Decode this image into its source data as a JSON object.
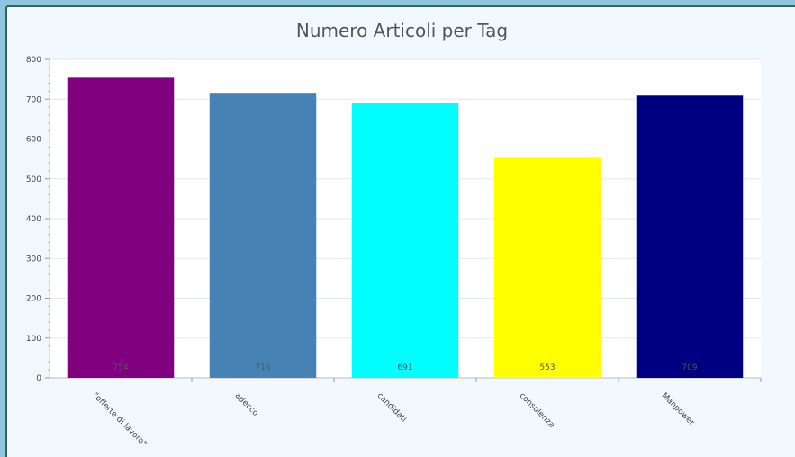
{
  "chart_data": {
    "type": "bar",
    "title": "Numero Articoli per Tag",
    "categories": [
      "\"offerte di lavoro\"",
      "adecco",
      "candidati",
      "consulenza",
      "Manpower"
    ],
    "values": [
      754,
      716,
      691,
      553,
      709
    ],
    "colors": [
      "#800080",
      "#4682b4",
      "#00ffff",
      "#ffff00",
      "#000080"
    ],
    "ylim": [
      0,
      800
    ],
    "yticks": [
      0,
      100,
      200,
      300,
      400,
      500,
      600,
      700,
      800
    ],
    "xlabel": "",
    "ylabel": "",
    "grid": true,
    "data_labels": true
  }
}
